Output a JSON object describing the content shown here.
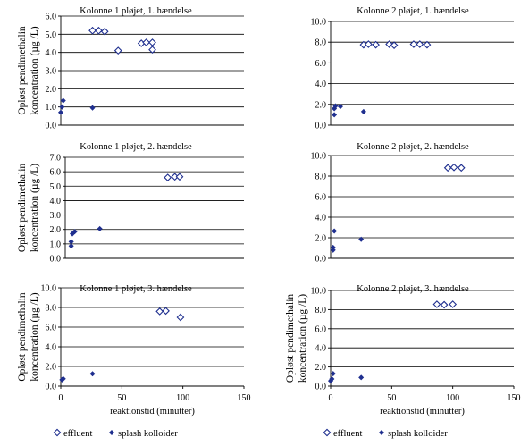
{
  "chart_data": [
    {
      "type": "scatter",
      "title": "Kolonne 1 pløjet, 1. hændelse",
      "ylabel": [
        "Opløst pendimethalin",
        "koncentration (µg /L)"
      ],
      "xlabel": "",
      "xlim": [
        0,
        150
      ],
      "ylim": [
        0,
        6
      ],
      "yticks": [
        "0.0",
        "1.0",
        "2.0",
        "3.0",
        "4.0",
        "5.0",
        "6.0"
      ],
      "xticks": [],
      "series": [
        {
          "name": "effluent",
          "marker": "open-diamond",
          "points": [
            [
              26,
              5.2
            ],
            [
              31,
              5.2
            ],
            [
              36,
              5.15
            ],
            [
              47,
              4.1
            ],
            [
              66,
              4.5
            ],
            [
              70,
              4.55
            ],
            [
              75,
              4.55
            ],
            [
              75,
              4.15
            ]
          ]
        },
        {
          "name": "splash kolloider",
          "marker": "filled-diamond",
          "points": [
            [
              0,
              0.7
            ],
            [
              1,
              1.0
            ],
            [
              2,
              1.35
            ],
            [
              26,
              0.95
            ]
          ]
        }
      ]
    },
    {
      "type": "scatter",
      "title": "Kolonne 2 pløjet, 1. hændelse",
      "ylabel": [],
      "xlabel": "",
      "xlim": [
        0,
        150
      ],
      "ylim": [
        0,
        10
      ],
      "yticks": [
        "0.0",
        "2.0",
        "4.0",
        "6.0",
        "8.0",
        "10.0"
      ],
      "xticks": [],
      "series": [
        {
          "name": "effluent",
          "marker": "open-diamond",
          "points": [
            [
              27,
              7.75
            ],
            [
              31,
              7.8
            ],
            [
              37,
              7.75
            ],
            [
              48,
              7.8
            ],
            [
              52,
              7.7
            ],
            [
              68,
              7.8
            ],
            [
              73,
              7.8
            ],
            [
              79,
              7.75
            ]
          ]
        },
        {
          "name": "splash kolloider",
          "marker": "filled-diamond",
          "points": [
            [
              3,
              1.0
            ],
            [
              3,
              1.6
            ],
            [
              4,
              1.85
            ],
            [
              8,
              1.8
            ],
            [
              27,
              1.3
            ]
          ]
        }
      ]
    },
    {
      "type": "scatter",
      "title": "Kolonne 1 pløjet, 2. hændelse",
      "ylabel": [
        "Opløst pendimethalin",
        "koncentration (µg /L)"
      ],
      "xlabel": "",
      "xlim": [
        0,
        150
      ],
      "ylim": [
        0,
        7
      ],
      "yticks": [
        "0.0",
        "1.0",
        "2.0",
        "3.0",
        "4.0",
        "5.0",
        "6.0",
        "7.0"
      ],
      "xticks": [],
      "series": [
        {
          "name": "effluent",
          "marker": "open-diamond",
          "points": [
            [
              86,
              5.6
            ],
            [
              92,
              5.65
            ],
            [
              96,
              5.65
            ]
          ]
        },
        {
          "name": "splash kolloider",
          "marker": "filled-diamond",
          "points": [
            [
              5,
              0.85
            ],
            [
              5,
              1.15
            ],
            [
              6,
              1.7
            ],
            [
              8,
              1.85
            ],
            [
              29,
              2.05
            ]
          ]
        }
      ]
    },
    {
      "type": "scatter",
      "title": "Kolonne 2 pløjet, 2. hændelse",
      "ylabel": [],
      "xlabel": "",
      "xlim": [
        0,
        150
      ],
      "ylim": [
        0,
        10
      ],
      "yticks": [
        "0.0",
        "2.0",
        "4.0",
        "6.0",
        "8.0",
        "10.0"
      ],
      "xticks": [],
      "series": [
        {
          "name": "effluent",
          "marker": "open-diamond",
          "points": [
            [
              96,
              8.8
            ],
            [
              101,
              8.85
            ],
            [
              107,
              8.8
            ]
          ]
        },
        {
          "name": "splash kolloider",
          "marker": "filled-diamond",
          "points": [
            [
              2,
              0.8
            ],
            [
              2,
              1.05
            ],
            [
              3,
              2.65
            ],
            [
              25,
              1.85
            ]
          ]
        }
      ]
    },
    {
      "type": "scatter",
      "title": "Kolonne 1 pløjet, 3. hændelse",
      "ylabel": [
        "Opløst pendimethalin",
        "koncentration (µg /L)"
      ],
      "xlabel": "reaktionstid (minutter)",
      "xlim": [
        0,
        150
      ],
      "ylim": [
        0,
        10
      ],
      "yticks": [
        "0.0",
        "2.0",
        "4.0",
        "6.0",
        "8.0",
        "10.0"
      ],
      "xticks": [
        "0",
        "50",
        "100",
        "150"
      ],
      "series": [
        {
          "name": "effluent",
          "marker": "open-diamond",
          "points": [
            [
              81,
              7.6
            ],
            [
              86,
              7.65
            ],
            [
              98,
              7.0
            ]
          ]
        },
        {
          "name": "splash kolloider",
          "marker": "filled-diamond",
          "points": [
            [
              1,
              0.65
            ],
            [
              2,
              0.75
            ],
            [
              26,
              1.25
            ]
          ]
        }
      ]
    },
    {
      "type": "scatter",
      "title": "Kolonne 2 pløjet, 3. hændelse",
      "ylabel": [
        "Opløst pendimethalin",
        "koncentration (µg /L)"
      ],
      "xlabel": "reaktionstid (minutter)",
      "xlim": [
        0,
        150
      ],
      "ylim": [
        0,
        10
      ],
      "yticks": [
        "0.0",
        "2.0",
        "4.0",
        "6.0",
        "8.0",
        "10.0"
      ],
      "xticks": [
        "0",
        "50",
        "100",
        "150"
      ],
      "series": [
        {
          "name": "effluent",
          "marker": "open-diamond",
          "points": [
            [
              87,
              8.55
            ],
            [
              93,
              8.5
            ],
            [
              100,
              8.55
            ]
          ]
        },
        {
          "name": "splash kolloider",
          "marker": "filled-diamond",
          "points": [
            [
              0,
              0.55
            ],
            [
              1,
              0.75
            ],
            [
              2,
              1.3
            ],
            [
              25,
              0.9
            ]
          ]
        }
      ]
    }
  ],
  "legend": {
    "effluent": "effluent",
    "splash": "splash kolloider"
  },
  "colors": {
    "marker": "#1f2f8f",
    "grid": "#000000"
  }
}
